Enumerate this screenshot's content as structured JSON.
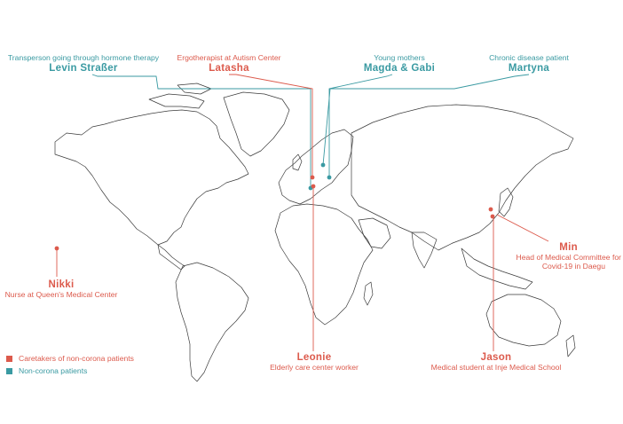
{
  "colors": {
    "teal": "#3a9aa2",
    "red": "#dc5a4c",
    "land_stroke": "#3a3a3a"
  },
  "map": {
    "type": "world-outline",
    "projection": "equirectangular"
  },
  "people": [
    {
      "id": "levin",
      "name": "Levin Straßer",
      "role": "Transperson going through hormone therapy",
      "group": "patient",
      "location": "Germany"
    },
    {
      "id": "latasha",
      "name": "Latasha",
      "role": "Ergotherapist at Autism Center",
      "group": "caretaker",
      "location": "Germany"
    },
    {
      "id": "magda",
      "name": "Magda & Gabi",
      "role": "Young mothers",
      "group": "patient",
      "location": "Poland"
    },
    {
      "id": "martyna",
      "name": "Martyna",
      "role": "Chronic disease patient",
      "group": "patient",
      "location": "Poland"
    },
    {
      "id": "nikki",
      "name": "Nikki",
      "role": "Nurse at Queen's Medical Center",
      "group": "caretaker",
      "location": "Hawaii"
    },
    {
      "id": "leonie",
      "name": "Leonie",
      "role": "Elderly care center worker",
      "group": "caretaker",
      "location": "Germany"
    },
    {
      "id": "min",
      "name": "Min",
      "role_line1": "Head of Medical Committee for",
      "role_line2": "Covid-19 in Daegu",
      "group": "caretaker",
      "location": "South Korea"
    },
    {
      "id": "jason",
      "name": "Jason",
      "role": "Medical student at Inje Medical School",
      "group": "caretaker",
      "location": "South Korea"
    }
  ],
  "legend": [
    {
      "label": "Caretakers of non-corona patients",
      "color": "#dc5a4c"
    },
    {
      "label": "Non-corona patients",
      "color": "#3a9aa2"
    }
  ]
}
